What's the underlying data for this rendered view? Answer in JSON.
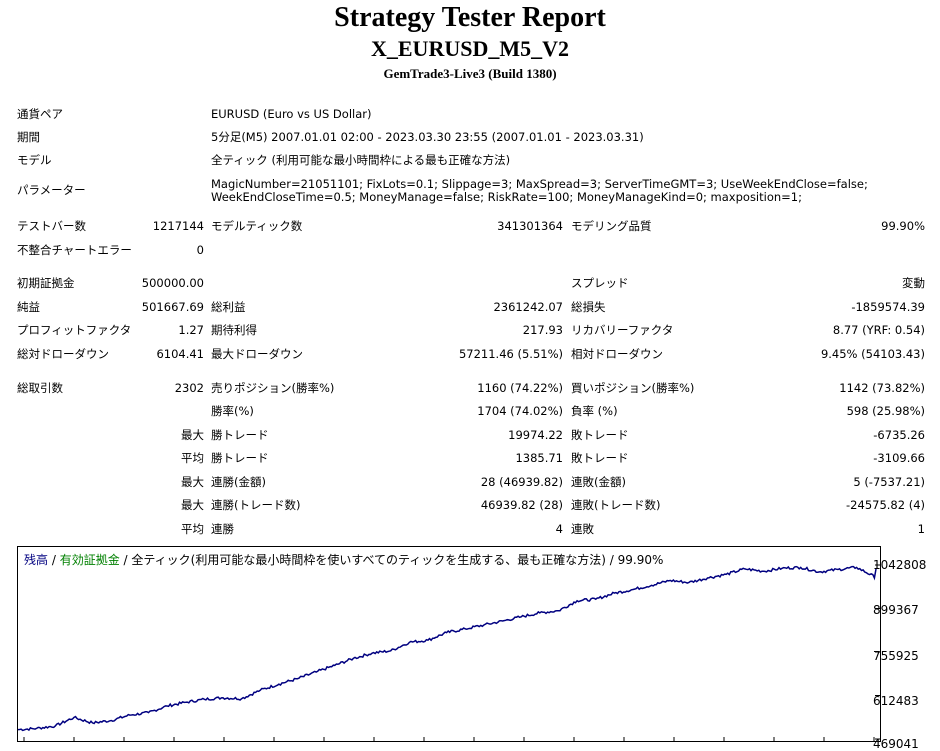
{
  "header": {
    "title": "Strategy Tester Report",
    "ea_name": "X_EURUSD_M5_V2",
    "server": "GemTrade3-Live3 (Build 1380)"
  },
  "info": {
    "pair_label": "通貨ペア",
    "pair_value": "EURUSD (Euro vs US Dollar)",
    "period_label": "期間",
    "period_value": "5分足(M5) 2007.01.01 02:00 - 2023.03.30 23:55 (2007.01.01 - 2023.03.31)",
    "model_label": "モデル",
    "model_value": "全ティック (利用可能な最小時間枠による最も正確な方法)",
    "params_label": "パラメーター",
    "params_line1": "MagicNumber=21051101; FixLots=0.1; Slippage=3; MaxSpread=3; ServerTimeGMT=3; UseWeekEndClose=false;",
    "params_line2": "WeekEndCloseTime=0.5; MoneyManage=false; RiskRate=100; MoneyManageKind=0; maxposition=1;"
  },
  "bars": {
    "test_bars_label": "テストバー数",
    "test_bars_value": "1217144",
    "model_ticks_label": "モデルティック数",
    "model_ticks_value": "341301364",
    "model_quality_label": "モデリング品質",
    "model_quality_value": "99.90%",
    "mismatch_label": "不整合チャートエラー",
    "mismatch_value": "0"
  },
  "stats": {
    "initial_deposit_label": "初期証拠金",
    "initial_deposit_value": "500000.00",
    "spread_label": "スプレッド",
    "spread_value": "変動",
    "net_profit_label": "純益",
    "net_profit_value": "501667.69",
    "gross_profit_label": "総利益",
    "gross_profit_value": "2361242.07",
    "gross_loss_label": "総損失",
    "gross_loss_value": "-1859574.39",
    "profit_factor_label": "プロフィットファクタ",
    "profit_factor_value": "1.27",
    "expected_payoff_label": "期待利得",
    "expected_payoff_value": "217.93",
    "recovery_factor_label": "リカバリーファクタ",
    "recovery_factor_value": "8.77 (YRF: 0.54)",
    "abs_dd_label": "総対ドローダウン",
    "abs_dd_value": "6104.41",
    "max_dd_label": "最大ドローダウン",
    "max_dd_value": "57211.46 (5.51%)",
    "rel_dd_label": "相対ドローダウン",
    "rel_dd_value": "9.45% (54103.43)"
  },
  "trades": {
    "total_label": "総取引数",
    "total_value": "2302",
    "short_label": "売りポジション(勝率%)",
    "short_value": "1160 (74.22%)",
    "long_label": "買いポジション(勝率%)",
    "long_value": "1142 (73.82%)",
    "win_rate_label": "勝率(%)",
    "win_rate_value": "1704 (74.02%)",
    "loss_rate_label": "負率 (%)",
    "loss_rate_value": "598 (25.98%)",
    "max_prefix": "最大",
    "avg_prefix": "平均",
    "largest_win_label": "勝トレード",
    "largest_win_value": "19974.22",
    "largest_loss_label": "敗トレード",
    "largest_loss_value": "-6735.26",
    "avg_win_label": "勝トレード",
    "avg_win_value": "1385.71",
    "avg_loss_label": "敗トレード",
    "avg_loss_value": "-3109.66",
    "max_consec_win_label": "連勝(金額)",
    "max_consec_win_value": "28 (46939.82)",
    "max_consec_loss_label": "連敗(金額)",
    "max_consec_loss_value": "5 (-7537.21)",
    "max_consec_profit_label": "連勝(トレード数)",
    "max_consec_profit_value": "46939.82 (28)",
    "max_consec_lossamt_label": "連敗(トレード数)",
    "max_consec_lossamt_value": "-24575.82 (4)",
    "avg_consec_win_label": "連勝",
    "avg_consec_win_value": "4",
    "avg_consec_loss_label": "連敗",
    "avg_consec_loss_value": "1"
  },
  "chart": {
    "legend_balance": "残高",
    "legend_sep1": " / ",
    "legend_equity": "有効証拠金",
    "legend_sep2": " / ",
    "legend_rest": "全ティック(利用可能な最小時間枠を使いすべてのティックを生成する、最も正確な方法) / 99.90%",
    "balance_color": "#000080",
    "equity_color": "#008000",
    "y_ticks": [
      "1042808",
      "899367",
      "755925",
      "612483",
      "469041"
    ]
  },
  "chart_data": {
    "type": "line",
    "series": [
      {
        "name": "残高",
        "x": [
          0,
          50,
          100,
          150,
          200,
          250,
          300,
          350,
          400,
          450,
          500,
          550,
          600,
          650,
          700,
          750,
          800,
          850,
          900,
          950,
          1000,
          1050,
          1100,
          1150,
          1200,
          1250,
          1300,
          1350,
          1400,
          1450,
          1500,
          1550,
          1600,
          1650,
          1700,
          1750,
          1800,
          1850,
          1900,
          1950,
          2000,
          2050,
          2100,
          2150,
          2200,
          2250,
          2302
        ],
        "values": [
          500000,
          504000,
          512000,
          540000,
          522000,
          530000,
          548000,
          556000,
          578000,
          590000,
          600000,
          605000,
          602000,
          630000,
          650000,
          668000,
          690000,
          712000,
          735000,
          752000,
          760000,
          788000,
          795000,
          820000,
          832000,
          845000,
          858000,
          872000,
          885000,
          892000,
          925000,
          930000,
          950000,
          962000,
          976000,
          992000,
          985000,
          1000000,
          1012000,
          1030000,
          1022000,
          1032000,
          1035000,
          1020000,
          1028000,
          1035000,
          1001668
        ]
      }
    ],
    "ylim": [
      469041,
      1042808
    ],
    "y_ticks": [
      1042808,
      899367,
      755925,
      612483,
      469041
    ],
    "grid": false,
    "legend": "top-left"
  }
}
